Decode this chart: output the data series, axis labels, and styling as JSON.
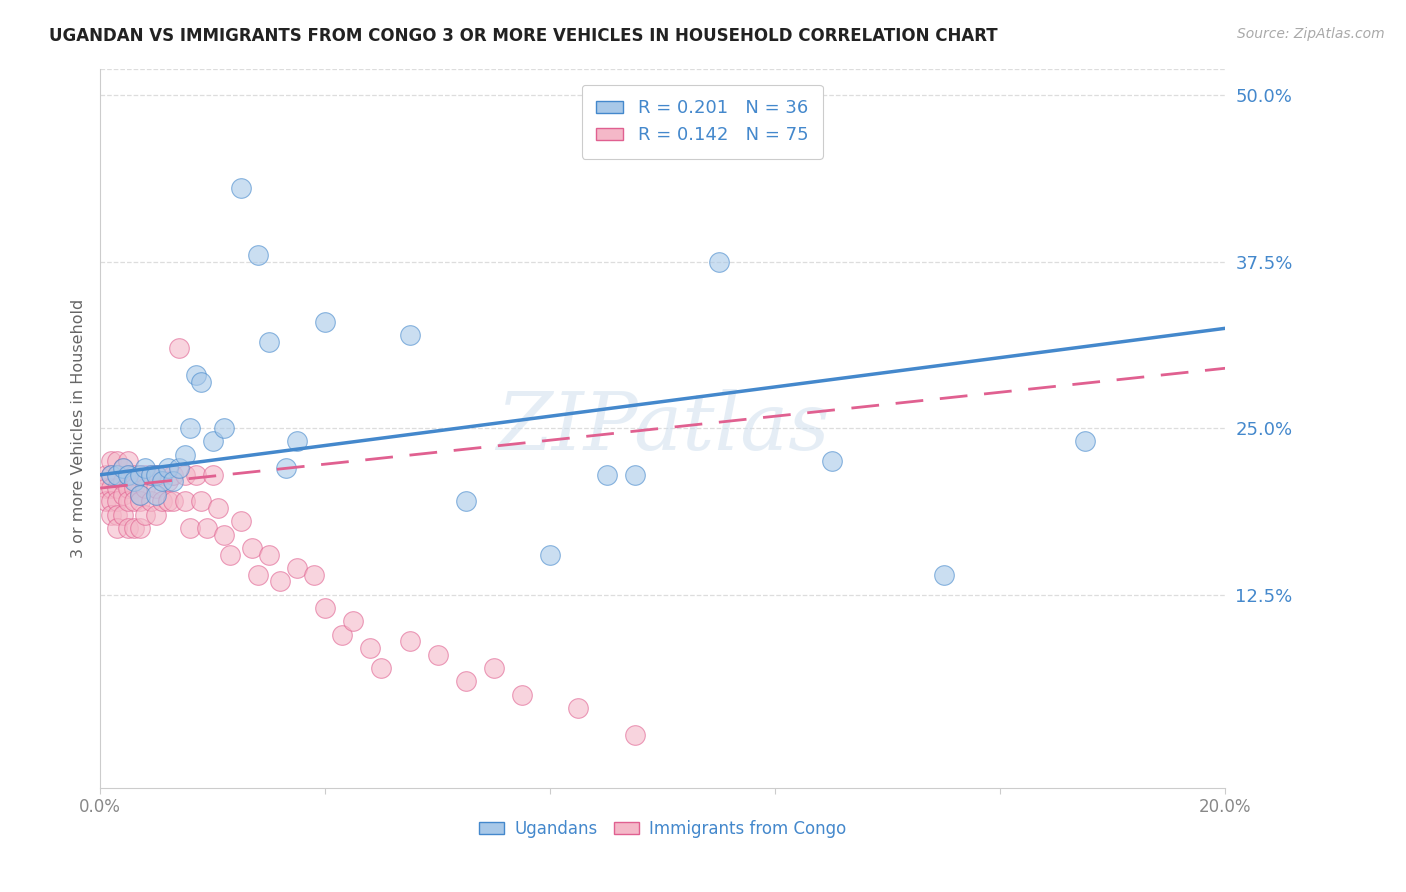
{
  "title": "UGANDAN VS IMMIGRANTS FROM CONGO 3 OR MORE VEHICLES IN HOUSEHOLD CORRELATION CHART",
  "source": "Source: ZipAtlas.com",
  "ylabel": "3 or more Vehicles in Household",
  "watermark": "ZIPatlas",
  "xlim": [
    0.0,
    0.2
  ],
  "ylim": [
    -0.02,
    0.52
  ],
  "yticks_right": [
    0.125,
    0.25,
    0.375,
    0.5
  ],
  "ytick_right_labels": [
    "12.5%",
    "25.0%",
    "37.5%",
    "50.0%"
  ],
  "legend_r1": "R = 0.201",
  "legend_n1": "N = 36",
  "legend_r2": "R = 0.142",
  "legend_n2": "N = 75",
  "blue_color": "#a8c8e8",
  "pink_color": "#f4b8c8",
  "trend_blue": "#4488cc",
  "trend_pink": "#e06090",
  "legend_text_color": "#4488cc",
  "right_tick_color": "#4488cc",
  "background": "#ffffff",
  "ugandan_x": [
    0.002,
    0.003,
    0.004,
    0.005,
    0.006,
    0.007,
    0.007,
    0.008,
    0.009,
    0.01,
    0.01,
    0.011,
    0.012,
    0.013,
    0.014,
    0.015,
    0.016,
    0.017,
    0.018,
    0.02,
    0.022,
    0.025,
    0.028,
    0.03,
    0.033,
    0.035,
    0.04,
    0.055,
    0.065,
    0.08,
    0.09,
    0.095,
    0.11,
    0.13,
    0.15,
    0.175
  ],
  "ugandan_y": [
    0.215,
    0.215,
    0.22,
    0.215,
    0.21,
    0.215,
    0.2,
    0.22,
    0.215,
    0.215,
    0.2,
    0.21,
    0.22,
    0.21,
    0.22,
    0.23,
    0.25,
    0.29,
    0.285,
    0.24,
    0.25,
    0.43,
    0.38,
    0.315,
    0.22,
    0.24,
    0.33,
    0.32,
    0.195,
    0.155,
    0.215,
    0.215,
    0.375,
    0.225,
    0.14,
    0.24
  ],
  "congo_x": [
    0.001,
    0.001,
    0.001,
    0.002,
    0.002,
    0.002,
    0.002,
    0.002,
    0.003,
    0.003,
    0.003,
    0.003,
    0.003,
    0.003,
    0.004,
    0.004,
    0.004,
    0.004,
    0.005,
    0.005,
    0.005,
    0.005,
    0.005,
    0.006,
    0.006,
    0.006,
    0.006,
    0.007,
    0.007,
    0.007,
    0.007,
    0.008,
    0.008,
    0.008,
    0.009,
    0.009,
    0.01,
    0.01,
    0.01,
    0.011,
    0.011,
    0.012,
    0.012,
    0.013,
    0.013,
    0.014,
    0.015,
    0.015,
    0.016,
    0.017,
    0.018,
    0.019,
    0.02,
    0.021,
    0.022,
    0.023,
    0.025,
    0.027,
    0.028,
    0.03,
    0.032,
    0.035,
    0.038,
    0.04,
    0.043,
    0.045,
    0.048,
    0.05,
    0.055,
    0.06,
    0.065,
    0.07,
    0.075,
    0.085,
    0.095
  ],
  "congo_y": [
    0.215,
    0.205,
    0.195,
    0.225,
    0.215,
    0.205,
    0.195,
    0.185,
    0.225,
    0.215,
    0.205,
    0.195,
    0.185,
    0.175,
    0.22,
    0.21,
    0.2,
    0.185,
    0.225,
    0.215,
    0.205,
    0.195,
    0.175,
    0.215,
    0.205,
    0.195,
    0.175,
    0.215,
    0.2,
    0.195,
    0.175,
    0.215,
    0.205,
    0.185,
    0.215,
    0.195,
    0.215,
    0.205,
    0.185,
    0.215,
    0.195,
    0.21,
    0.195,
    0.215,
    0.195,
    0.31,
    0.215,
    0.195,
    0.175,
    0.215,
    0.195,
    0.175,
    0.215,
    0.19,
    0.17,
    0.155,
    0.18,
    0.16,
    0.14,
    0.155,
    0.135,
    0.145,
    0.14,
    0.115,
    0.095,
    0.105,
    0.085,
    0.07,
    0.09,
    0.08,
    0.06,
    0.07,
    0.05,
    0.04,
    0.02
  ]
}
